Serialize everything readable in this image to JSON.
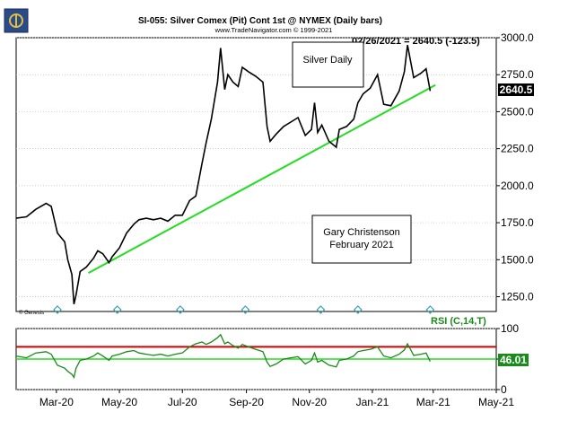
{
  "header": {
    "title": "SI-055:  Silver Comex (Pit) Cont 1st @ NYMEX  (Daily bars)",
    "source": "www.TradeNavigator.com © 1999-2021",
    "last_readout": "02/26/2021 = 2640.5 (-123.5)",
    "last_price_label": "2640.5"
  },
  "annotations": {
    "silver_daily": "Silver Daily",
    "author_line1": "Gary Christenson",
    "author_line2": "February 2021",
    "genesis": "© Genesis",
    "rsi_label": "RSI (C,14,T)",
    "rsi_value_label": "46.01"
  },
  "colors": {
    "price_line": "#000000",
    "trendline": "#22dd22",
    "rsi_line": "#1a8a1a",
    "rsi_overbought": "#cc0000",
    "rsi_midline": "#22dd22",
    "diamond": "#3aa0b0"
  },
  "chart_data": [
    {
      "type": "line",
      "name": "price",
      "y_ticks": [
        "3000.0",
        "2750.0",
        "2500.0",
        "2250.0",
        "2000.0",
        "1750.0",
        "1500.0",
        "1250.0"
      ],
      "ylim": [
        1150,
        3000
      ],
      "x_ticks": [
        "Mar-20",
        "May-20",
        "Jul-20",
        "Sep-20",
        "Nov-20",
        "Jan-21",
        "Mar-21",
        "May-21"
      ],
      "x_tick_dates": [
        "2020-03-01",
        "2020-05-01",
        "2020-07-01",
        "2020-09-01",
        "2020-11-01",
        "2021-01-01",
        "2021-03-01",
        "2021-05-01"
      ],
      "xlim": [
        "2020-01-22",
        "2021-05-01"
      ],
      "x": [
        "2020-01-22",
        "2020-02-01",
        "2020-02-10",
        "2020-02-20",
        "2020-02-25",
        "2020-03-02",
        "2020-03-09",
        "2020-03-12",
        "2020-03-16",
        "2020-03-18",
        "2020-03-20",
        "2020-03-24",
        "2020-03-30",
        "2020-04-06",
        "2020-04-10",
        "2020-04-15",
        "2020-04-21",
        "2020-04-24",
        "2020-05-01",
        "2020-05-08",
        "2020-05-15",
        "2020-05-20",
        "2020-05-27",
        "2020-06-03",
        "2020-06-10",
        "2020-06-17",
        "2020-06-24",
        "2020-07-01",
        "2020-07-08",
        "2020-07-14",
        "2020-07-20",
        "2020-07-24",
        "2020-07-29",
        "2020-08-04",
        "2020-08-07",
        "2020-08-11",
        "2020-08-14",
        "2020-08-19",
        "2020-08-24",
        "2020-08-28",
        "2020-09-03",
        "2020-09-10",
        "2020-09-17",
        "2020-09-21",
        "2020-09-24",
        "2020-09-30",
        "2020-10-07",
        "2020-10-14",
        "2020-10-21",
        "2020-10-28",
        "2020-11-03",
        "2020-11-06",
        "2020-11-09",
        "2020-11-13",
        "2020-11-20",
        "2020-11-27",
        "2020-11-30",
        "2020-12-07",
        "2020-12-14",
        "2020-12-18",
        "2020-12-23",
        "2020-12-30",
        "2021-01-06",
        "2021-01-12",
        "2021-01-19",
        "2021-01-27",
        "2021-02-01",
        "2021-02-04",
        "2021-02-10",
        "2021-02-17",
        "2021-02-22",
        "2021-02-26"
      ],
      "values": [
        1780,
        1790,
        1840,
        1880,
        1860,
        1680,
        1620,
        1500,
        1400,
        1200,
        1260,
        1420,
        1450,
        1510,
        1560,
        1540,
        1480,
        1520,
        1580,
        1680,
        1740,
        1770,
        1780,
        1770,
        1780,
        1760,
        1800,
        1800,
        1900,
        1930,
        2150,
        2290,
        2450,
        2700,
        2930,
        2650,
        2750,
        2700,
        2670,
        2800,
        2770,
        2740,
        2700,
        2400,
        2300,
        2350,
        2400,
        2430,
        2460,
        2340,
        2380,
        2560,
        2360,
        2410,
        2300,
        2260,
        2380,
        2400,
        2450,
        2560,
        2620,
        2660,
        2750,
        2550,
        2540,
        2640,
        2770,
        2950,
        2730,
        2760,
        2790,
        2640
      ]
    },
    {
      "type": "line",
      "name": "trendline",
      "x": [
        "2020-04-01",
        "2021-03-03"
      ],
      "values": [
        1410,
        2680
      ]
    },
    {
      "type": "line",
      "name": "RSI",
      "y_ticks": [
        "100",
        "50",
        "0"
      ],
      "ylim": [
        0,
        100
      ],
      "overbought": 70,
      "midline": 50,
      "x": [
        "2020-01-22",
        "2020-02-01",
        "2020-02-10",
        "2020-02-20",
        "2020-02-25",
        "2020-03-02",
        "2020-03-09",
        "2020-03-12",
        "2020-03-16",
        "2020-03-18",
        "2020-03-20",
        "2020-03-24",
        "2020-03-30",
        "2020-04-06",
        "2020-04-10",
        "2020-04-15",
        "2020-04-21",
        "2020-04-24",
        "2020-05-01",
        "2020-05-08",
        "2020-05-15",
        "2020-05-20",
        "2020-05-27",
        "2020-06-03",
        "2020-06-10",
        "2020-06-17",
        "2020-06-24",
        "2020-07-01",
        "2020-07-08",
        "2020-07-14",
        "2020-07-20",
        "2020-07-24",
        "2020-07-29",
        "2020-08-04",
        "2020-08-07",
        "2020-08-11",
        "2020-08-14",
        "2020-08-19",
        "2020-08-24",
        "2020-08-28",
        "2020-09-03",
        "2020-09-10",
        "2020-09-17",
        "2020-09-21",
        "2020-09-24",
        "2020-09-30",
        "2020-10-07",
        "2020-10-14",
        "2020-10-21",
        "2020-10-28",
        "2020-11-03",
        "2020-11-06",
        "2020-11-09",
        "2020-11-13",
        "2020-11-20",
        "2020-11-27",
        "2020-11-30",
        "2020-12-07",
        "2020-12-14",
        "2020-12-18",
        "2020-12-23",
        "2020-12-30",
        "2021-01-06",
        "2021-01-12",
        "2021-01-19",
        "2021-01-27",
        "2021-02-01",
        "2021-02-04",
        "2021-02-10",
        "2021-02-17",
        "2021-02-22",
        "2021-02-26"
      ],
      "values": [
        55,
        52,
        60,
        62,
        58,
        40,
        35,
        30,
        25,
        20,
        35,
        48,
        50,
        55,
        60,
        55,
        48,
        55,
        58,
        62,
        64,
        60,
        58,
        56,
        58,
        55,
        58,
        60,
        70,
        75,
        78,
        74,
        78,
        85,
        90,
        75,
        78,
        72,
        68,
        74,
        70,
        66,
        62,
        45,
        38,
        42,
        50,
        52,
        54,
        42,
        48,
        60,
        45,
        48,
        40,
        37,
        48,
        50,
        55,
        62,
        64,
        66,
        70,
        55,
        52,
        58,
        65,
        75,
        56,
        58,
        60,
        46
      ]
    },
    {
      "type": "scatter",
      "name": "markers",
      "x": [
        "2020-03-02",
        "2020-04-29",
        "2020-06-29",
        "2020-08-31",
        "2020-11-12",
        "2020-12-18",
        "2021-02-26"
      ]
    }
  ]
}
